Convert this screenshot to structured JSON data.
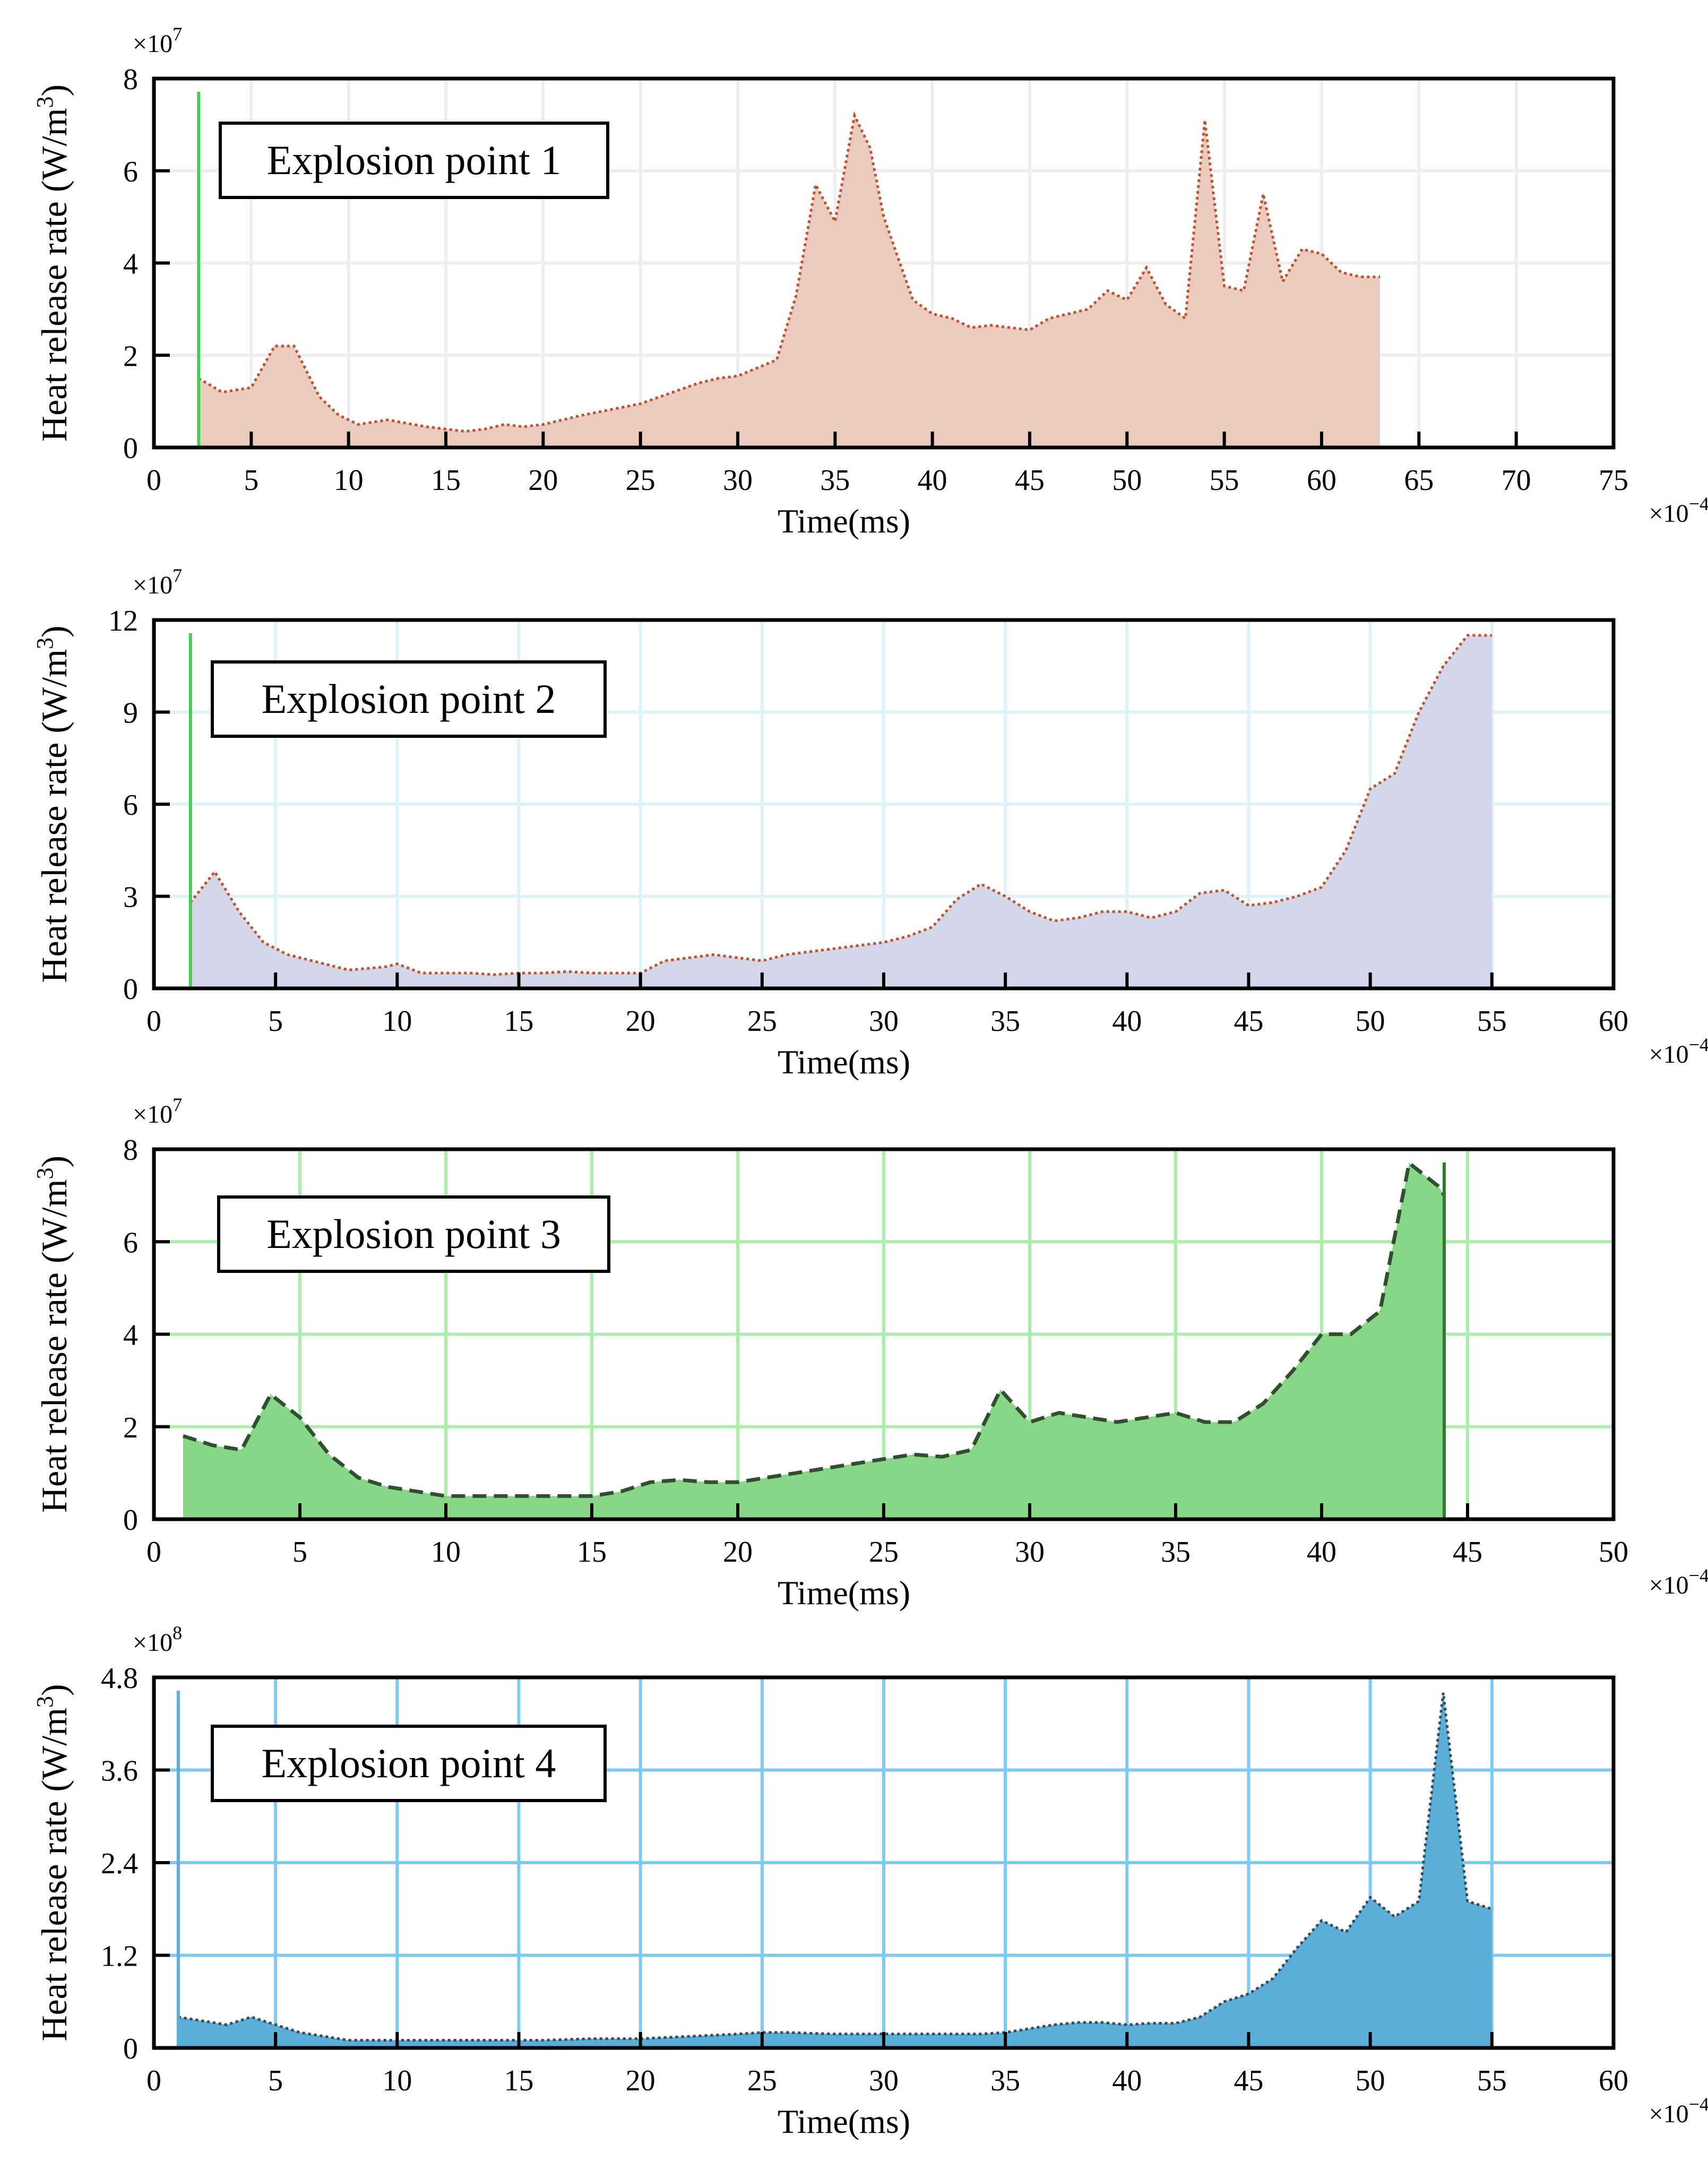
{
  "chart_data": [
    {
      "type": "area",
      "legend": "Explosion point 1",
      "xlabel": "Time(ms)",
      "ylabel": "Heat release rate (W/m",
      "ylabel_sup": "3",
      "ylabel_close": ")",
      "x_multiplier": "×10",
      "x_multiplier_exp": "−4",
      "y_multiplier": "×10",
      "y_multiplier_exp": "7",
      "xlim": [
        0,
        75
      ],
      "ylim": [
        0,
        8
      ],
      "xticks": [
        "0",
        "5",
        "10",
        "15",
        "20",
        "25",
        "30",
        "35",
        "40",
        "45",
        "50",
        "55",
        "60",
        "65",
        "70",
        "75"
      ],
      "yticks": [
        "0",
        "2",
        "4",
        "6",
        "8"
      ],
      "marker_x": 2.3,
      "colors": {
        "fill": "#ebcbbd",
        "line": "#c0502d",
        "grid": "#eeeeee",
        "marker": "#44cc55"
      },
      "line_style": "dotted",
      "x": [
        2.3,
        3.5,
        5,
        6.2,
        7.2,
        8.5,
        9.5,
        10.5,
        12,
        14,
        16,
        17,
        18,
        19,
        20,
        22,
        25,
        28,
        29,
        30,
        32,
        33,
        34,
        35,
        36,
        36.8,
        37.5,
        39,
        40,
        41,
        42,
        43,
        45,
        46,
        47,
        48,
        49,
        50,
        51,
        52,
        53,
        54,
        55,
        56,
        57,
        58,
        59,
        60,
        61,
        62,
        63
      ],
      "values": [
        1.5,
        1.2,
        1.3,
        2.2,
        2.2,
        1.1,
        0.7,
        0.5,
        0.6,
        0.45,
        0.35,
        0.4,
        0.5,
        0.45,
        0.5,
        0.7,
        0.95,
        1.4,
        1.5,
        1.55,
        1.9,
        3.3,
        5.7,
        4.9,
        7.2,
        6.5,
        5.0,
        3.2,
        2.9,
        2.8,
        2.6,
        2.65,
        2.55,
        2.8,
        2.9,
        3.0,
        3.4,
        3.2,
        3.9,
        3.1,
        2.8,
        7.1,
        3.5,
        3.4,
        5.5,
        3.6,
        4.3,
        4.2,
        3.8,
        3.7,
        3.7
      ]
    },
    {
      "type": "area",
      "legend": "Explosion point 2",
      "xlabel": "Time(ms)",
      "ylabel": "Heat release rate (W/m",
      "ylabel_sup": "3",
      "ylabel_close": ")",
      "x_multiplier": "×10",
      "x_multiplier_exp": "−4",
      "y_multiplier": "×10",
      "y_multiplier_exp": "7",
      "xlim": [
        0,
        60
      ],
      "ylim": [
        0,
        12
      ],
      "xticks": [
        "0",
        "5",
        "10",
        "15",
        "20",
        "25",
        "30",
        "35",
        "40",
        "45",
        "50",
        "55",
        "60"
      ],
      "yticks": [
        "0",
        "3",
        "6",
        "9",
        "12"
      ],
      "marker_x": 1.5,
      "colors": {
        "fill": "#d3d7ea",
        "line": "#c0502d",
        "grid": "#ddf2fa",
        "marker": "#44cc55"
      },
      "line_style": "dotted",
      "x": [
        1.5,
        2.5,
        3.5,
        4.5,
        5.5,
        7,
        8,
        9.5,
        10,
        11,
        12,
        13,
        14,
        15,
        16,
        17,
        18,
        19,
        20,
        21,
        22,
        23,
        24,
        25,
        26,
        27,
        28,
        29,
        30,
        31,
        32,
        33,
        34,
        35,
        36,
        37,
        38,
        39,
        40,
        41,
        42,
        43,
        44,
        45,
        46,
        47,
        48,
        49,
        50,
        51,
        52,
        53,
        54,
        55
      ],
      "values": [
        2.8,
        3.8,
        2.5,
        1.5,
        1.1,
        0.8,
        0.6,
        0.7,
        0.8,
        0.5,
        0.5,
        0.5,
        0.45,
        0.5,
        0.5,
        0.55,
        0.5,
        0.5,
        0.5,
        0.9,
        1.0,
        1.1,
        1.0,
        0.9,
        1.1,
        1.2,
        1.3,
        1.4,
        1.5,
        1.7,
        2.0,
        2.9,
        3.4,
        3.0,
        2.5,
        2.2,
        2.3,
        2.5,
        2.5,
        2.3,
        2.5,
        3.1,
        3.2,
        2.7,
        2.8,
        3.0,
        3.3,
        4.5,
        6.5,
        7.0,
        9.0,
        10.5,
        11.5,
        11.5
      ]
    },
    {
      "type": "area",
      "legend": "Explosion point 3",
      "xlabel": "Time(ms)",
      "ylabel": "Heat release rate (W/m",
      "ylabel_sup": "3",
      "ylabel_close": ")",
      "x_multiplier": "×10",
      "x_multiplier_exp": "−4",
      "y_multiplier": "×10",
      "y_multiplier_exp": "7",
      "xlim": [
        0,
        50
      ],
      "ylim": [
        0,
        8
      ],
      "xticks": [
        "0",
        "5",
        "10",
        "15",
        "20",
        "25",
        "30",
        "35",
        "40",
        "45",
        "50"
      ],
      "yticks": [
        "0",
        "2",
        "4",
        "6",
        "8"
      ],
      "marker_x": 44.2,
      "colors": {
        "fill": "#87d787",
        "line": "#2f4f2f",
        "grid": "#a9eea9",
        "marker": "#2f7a2f"
      },
      "line_style": "dashed",
      "x": [
        1,
        2,
        3,
        4,
        5,
        6,
        7,
        8,
        9,
        10,
        11,
        12,
        13,
        14,
        15,
        16,
        17,
        18,
        19,
        20,
        21,
        22,
        23,
        24,
        25,
        26,
        27,
        28,
        29,
        30,
        31,
        32,
        33,
        34,
        35,
        36,
        37,
        38,
        39,
        40,
        41,
        42,
        43,
        44,
        44.2
      ],
      "values": [
        1.8,
        1.6,
        1.5,
        2.7,
        2.2,
        1.4,
        0.9,
        0.7,
        0.6,
        0.5,
        0.5,
        0.5,
        0.5,
        0.5,
        0.5,
        0.6,
        0.8,
        0.85,
        0.8,
        0.8,
        0.9,
        1.0,
        1.1,
        1.2,
        1.3,
        1.4,
        1.35,
        1.5,
        2.8,
        2.1,
        2.3,
        2.2,
        2.1,
        2.2,
        2.3,
        2.1,
        2.1,
        2.5,
        3.2,
        4.0,
        4.0,
        4.5,
        7.7,
        7.2,
        7.0
      ]
    },
    {
      "type": "area",
      "legend": "Explosion point 4",
      "xlabel": "Time(ms)",
      "ylabel": "Heat release rate (W/m",
      "ylabel_sup": "3",
      "ylabel_close": ")",
      "x_multiplier": "×10",
      "x_multiplier_exp": "−4",
      "y_multiplier": "×10",
      "y_multiplier_exp": "8",
      "xlim": [
        0,
        60
      ],
      "ylim": [
        0,
        4.8
      ],
      "xticks": [
        "0",
        "5",
        "10",
        "15",
        "20",
        "25",
        "30",
        "35",
        "40",
        "45",
        "50",
        "55",
        "60"
      ],
      "yticks": [
        "0",
        "1.2",
        "2.4",
        "3.6",
        "4.8"
      ],
      "marker_x": 1,
      "colors": {
        "fill": "#5aaed8",
        "line": "#2c4a5c",
        "grid": "#7ccaf5",
        "marker": "#5aaed8"
      },
      "line_style": "dotted",
      "x": [
        1,
        2,
        3,
        4,
        5,
        6,
        7,
        8,
        9,
        10,
        12,
        14,
        16,
        18,
        20,
        22,
        24,
        25,
        26,
        28,
        30,
        32,
        34,
        35,
        36,
        37,
        38,
        39,
        40,
        41,
        42,
        43,
        44,
        45,
        46,
        47,
        48,
        49,
        50,
        51,
        52,
        53,
        54,
        55
      ],
      "values": [
        0.4,
        0.35,
        0.3,
        0.4,
        0.3,
        0.2,
        0.15,
        0.1,
        0.1,
        0.1,
        0.1,
        0.1,
        0.1,
        0.12,
        0.12,
        0.15,
        0.18,
        0.2,
        0.2,
        0.18,
        0.18,
        0.18,
        0.18,
        0.2,
        0.25,
        0.3,
        0.33,
        0.33,
        0.3,
        0.32,
        0.32,
        0.4,
        0.6,
        0.7,
        0.9,
        1.3,
        1.65,
        1.5,
        1.95,
        1.7,
        1.9,
        4.6,
        1.9,
        1.8
      ]
    }
  ]
}
